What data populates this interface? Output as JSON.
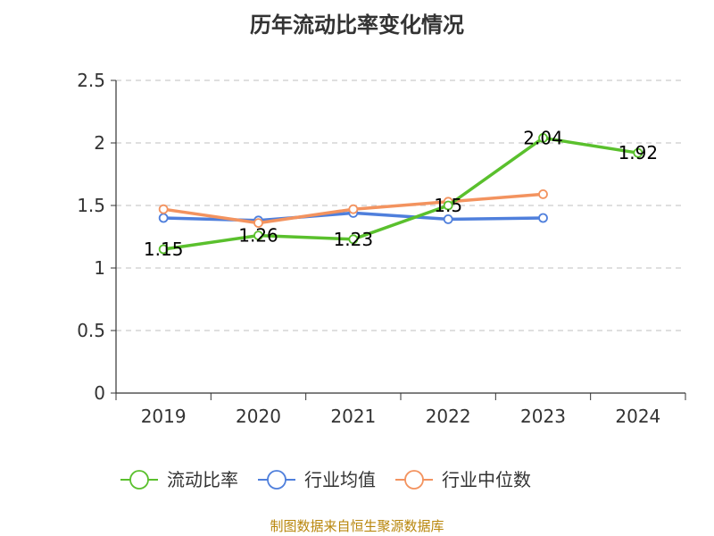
{
  "chart_data": {
    "type": "line",
    "title": "历年流动比率变化情况",
    "categories": [
      "2019",
      "2020",
      "2021",
      "2022",
      "2023",
      "2024"
    ],
    "ylim": [
      0,
      2.5
    ],
    "yticks": [
      "0",
      "0.5",
      "1",
      "1.5",
      "2",
      "2.5"
    ],
    "grid": true,
    "legend_position": "bottom",
    "series": [
      {
        "name": "流动比率",
        "color": "#5ac02d",
        "values": [
          1.15,
          1.26,
          1.23,
          1.5,
          2.04,
          1.92
        ],
        "labels": [
          "1.15",
          "1.26",
          "1.23",
          "1.5",
          "2.04",
          "1.92"
        ]
      },
      {
        "name": "行业均值",
        "color": "#4f7fdc",
        "values": [
          1.4,
          1.38,
          1.44,
          1.39,
          1.4,
          null
        ]
      },
      {
        "name": "行业中位数",
        "color": "#f3935f",
        "values": [
          1.47,
          1.36,
          1.47,
          1.53,
          1.59,
          null
        ]
      }
    ]
  },
  "source": "制图数据来自恒生聚源数据库"
}
